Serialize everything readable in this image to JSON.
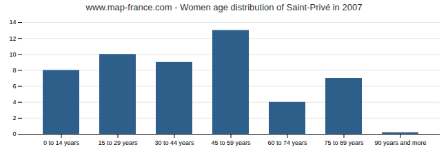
{
  "chart_data": {
    "type": "bar",
    "title": "www.map-france.com - Women age distribution of Saint-Privé in 2007",
    "categories": [
      "0 to 14 years",
      "15 to 29 years",
      "30 to 44 years",
      "45 to 59 years",
      "60 to 74 years",
      "75 to 89 years",
      "90 years and more"
    ],
    "values": [
      8,
      10,
      9,
      13,
      4,
      7,
      0.2
    ],
    "color": "#2e5f8a",
    "ylim": [
      0,
      14
    ],
    "yticks": [
      0,
      2,
      4,
      6,
      8,
      10,
      12,
      14
    ],
    "grid": true
  }
}
